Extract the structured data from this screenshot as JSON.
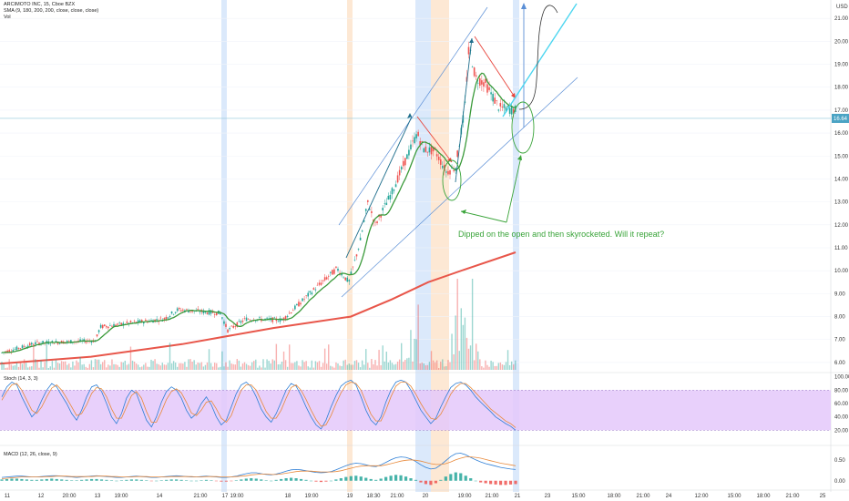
{
  "chart_data": {
    "type": "candlestick",
    "header": {
      "symbol_line": "ARCIMOTO INC, 15, Cboe BZX",
      "sma_line": "SMA (9, 180, 200, 200, close, close, close)",
      "vol_label": "Vol"
    },
    "x_ticks": [
      "11",
      "12",
      "20:00",
      "13",
      "19:00",
      "14",
      "21:00",
      "17",
      "19:00",
      "18",
      "19:00",
      "19",
      "18:30",
      "21:00",
      "20",
      "19:00",
      "21:00",
      "21",
      "23",
      "15:00",
      "18:00",
      "21:00",
      "24",
      "12:00",
      "15:00",
      "18:00",
      "21:00",
      "25"
    ],
    "price_axis": {
      "ticks": [
        "21.00",
        "20.00",
        "19.00",
        "18.00",
        "17.00",
        "16.00",
        "15.00",
        "14.00",
        "13.00",
        "12.00",
        "11.00",
        "10.00",
        "9.00",
        "8.00",
        "7.00",
        "6.00"
      ],
      "ylim": [
        5.6,
        21.8
      ],
      "top_value": "USD",
      "current_value": "16.64"
    },
    "stoch": {
      "label": "Stoch (14, 3, 3)",
      "ticks": [
        "100.00",
        "80.00",
        "60.00",
        "40.00",
        "20.00"
      ],
      "ylim": [
        0,
        105
      ],
      "band": [
        20,
        80
      ],
      "k": [
        70,
        85,
        92,
        88,
        70,
        55,
        40,
        48,
        65,
        80,
        90,
        85,
        72,
        60,
        45,
        35,
        50,
        70,
        85,
        88,
        78,
        60,
        40,
        30,
        45,
        68,
        80,
        75,
        55,
        35,
        25,
        40,
        62,
        78,
        85,
        80,
        68,
        50,
        38,
        45,
        60,
        70,
        58,
        40,
        28,
        35,
        55,
        75,
        88,
        92,
        85,
        70,
        52,
        40,
        32,
        45,
        62,
        80,
        90,
        86,
        72,
        55,
        40,
        28,
        22,
        35,
        55,
        72,
        86,
        92,
        95,
        88,
        70,
        50,
        35,
        28,
        40,
        62,
        80,
        92,
        95,
        92,
        80,
        65,
        50,
        40,
        30,
        38,
        55,
        70,
        84,
        90,
        92,
        88,
        80,
        70,
        62,
        55,
        48,
        40,
        35,
        30,
        26,
        20
      ],
      "d": [
        65,
        78,
        88,
        90,
        80,
        65,
        50,
        45,
        55,
        70,
        83,
        88,
        80,
        68,
        55,
        42,
        45,
        58,
        75,
        84,
        82,
        70,
        52,
        38,
        38,
        55,
        72,
        78,
        68,
        48,
        32,
        32,
        48,
        66,
        78,
        82,
        76,
        62,
        46,
        42,
        50,
        62,
        64,
        52,
        38,
        32,
        42,
        62,
        80,
        88,
        88,
        80,
        64,
        48,
        38,
        38,
        50,
        68,
        84,
        88,
        80,
        66,
        50,
        36,
        26,
        28,
        42,
        60,
        76,
        88,
        92,
        90,
        80,
        62,
        44,
        34,
        34,
        50,
        70,
        86,
        92,
        92,
        86,
        74,
        60,
        48,
        38,
        36,
        44,
        58,
        74,
        84,
        90,
        90,
        84,
        76,
        68,
        60,
        52,
        46,
        40,
        34,
        30,
        24
      ]
    },
    "macd": {
      "label": "MACD (12, 26, close, 9)",
      "ticks": [
        "0.50",
        "0.00"
      ],
      "ylim": [
        -0.18,
        0.78
      ],
      "hist": [
        0.03,
        0.04,
        0.05,
        0.05,
        0.04,
        0.03,
        0.02,
        0.02,
        0.03,
        0.04,
        0.05,
        0.04,
        0.03,
        0.02,
        0.01,
        0.01,
        0.02,
        0.03,
        0.04,
        0.04,
        0.03,
        0.02,
        0.01,
        0.0,
        0.01,
        0.02,
        0.03,
        0.03,
        0.02,
        0.01,
        -0.01,
        0.0,
        0.01,
        0.02,
        0.03,
        0.03,
        0.02,
        0.01,
        0.0,
        0.0,
        0.01,
        0.02,
        0.01,
        -0.01,
        -0.02,
        -0.02,
        -0.01,
        0.01,
        0.03,
        0.05,
        0.06,
        0.05,
        0.03,
        0.01,
        0.0,
        0.02,
        0.04,
        0.06,
        0.07,
        0.06,
        0.04,
        0.02,
        0.0,
        -0.02,
        -0.03,
        -0.02,
        0.0,
        0.03,
        0.06,
        0.09,
        0.11,
        0.12,
        0.1,
        0.07,
        0.04,
        0.02,
        0.05,
        0.09,
        0.12,
        0.14,
        0.13,
        0.1,
        0.06,
        0.02,
        -0.04,
        -0.08,
        -0.1,
        -0.06,
        0.02,
        0.1,
        0.16,
        0.2,
        0.18,
        0.12,
        0.06,
        0.0,
        -0.04,
        -0.06,
        -0.08,
        -0.09,
        -0.1,
        -0.1,
        -0.09,
        -0.08
      ],
      "macd": [
        0.08,
        0.09,
        0.1,
        0.11,
        0.11,
        0.1,
        0.09,
        0.09,
        0.1,
        0.11,
        0.12,
        0.12,
        0.11,
        0.1,
        0.09,
        0.08,
        0.09,
        0.1,
        0.11,
        0.12,
        0.11,
        0.1,
        0.09,
        0.08,
        0.08,
        0.09,
        0.1,
        0.11,
        0.1,
        0.09,
        0.08,
        0.08,
        0.09,
        0.1,
        0.11,
        0.12,
        0.11,
        0.1,
        0.09,
        0.09,
        0.1,
        0.11,
        0.1,
        0.09,
        0.08,
        0.08,
        0.09,
        0.11,
        0.14,
        0.17,
        0.19,
        0.19,
        0.17,
        0.15,
        0.14,
        0.16,
        0.19,
        0.23,
        0.26,
        0.27,
        0.26,
        0.24,
        0.22,
        0.2,
        0.19,
        0.2,
        0.22,
        0.26,
        0.31,
        0.36,
        0.4,
        0.42,
        0.41,
        0.38,
        0.35,
        0.34,
        0.38,
        0.44,
        0.5,
        0.55,
        0.57,
        0.56,
        0.52,
        0.46,
        0.38,
        0.32,
        0.28,
        0.3,
        0.38,
        0.48,
        0.58,
        0.65,
        0.66,
        0.62,
        0.56,
        0.5,
        0.45,
        0.41,
        0.38,
        0.35,
        0.32,
        0.3,
        0.28,
        0.27
      ],
      "signal": [
        0.05,
        0.06,
        0.07,
        0.08,
        0.09,
        0.09,
        0.09,
        0.09,
        0.09,
        0.1,
        0.1,
        0.11,
        0.11,
        0.11,
        0.1,
        0.1,
        0.1,
        0.1,
        0.1,
        0.11,
        0.11,
        0.11,
        0.1,
        0.1,
        0.09,
        0.09,
        0.09,
        0.1,
        0.1,
        0.1,
        0.09,
        0.09,
        0.09,
        0.09,
        0.1,
        0.1,
        0.1,
        0.1,
        0.1,
        0.09,
        0.09,
        0.1,
        0.1,
        0.1,
        0.09,
        0.09,
        0.09,
        0.1,
        0.11,
        0.12,
        0.14,
        0.15,
        0.16,
        0.16,
        0.15,
        0.15,
        0.16,
        0.18,
        0.2,
        0.22,
        0.23,
        0.23,
        0.23,
        0.22,
        0.21,
        0.21,
        0.21,
        0.22,
        0.24,
        0.27,
        0.3,
        0.33,
        0.35,
        0.36,
        0.36,
        0.36,
        0.36,
        0.38,
        0.41,
        0.44,
        0.47,
        0.49,
        0.5,
        0.49,
        0.47,
        0.44,
        0.41,
        0.39,
        0.39,
        0.41,
        0.45,
        0.5,
        0.54,
        0.57,
        0.57,
        0.56,
        0.54,
        0.51,
        0.48,
        0.45,
        0.42,
        0.4,
        0.38,
        0.36
      ]
    },
    "annotation_text": "Dipped on the open and then skyrocketed. Will it repeat?",
    "colors": {
      "up": "#26a69a",
      "down": "#ef5350",
      "sma_fast": "#3a9a3a",
      "sma_slow": "#e8564a",
      "channel": "#5b8fd6",
      "arrow_dark": "#1f6e8c",
      "arrow_red": "#e8453c",
      "arrow_blue": "#5b8fd6",
      "cyan": "#4dd6f0",
      "annot": "#3aa43a",
      "stoch_band": "#e4c8fa",
      "stoch_k": "#2e7fd6",
      "stoch_d": "#e88a3c",
      "macd_line": "#2e7fd6",
      "signal_line": "#e88a3c",
      "hl_blue": "#dbe9fb",
      "hl_orange": "#fde8d4"
    }
  }
}
